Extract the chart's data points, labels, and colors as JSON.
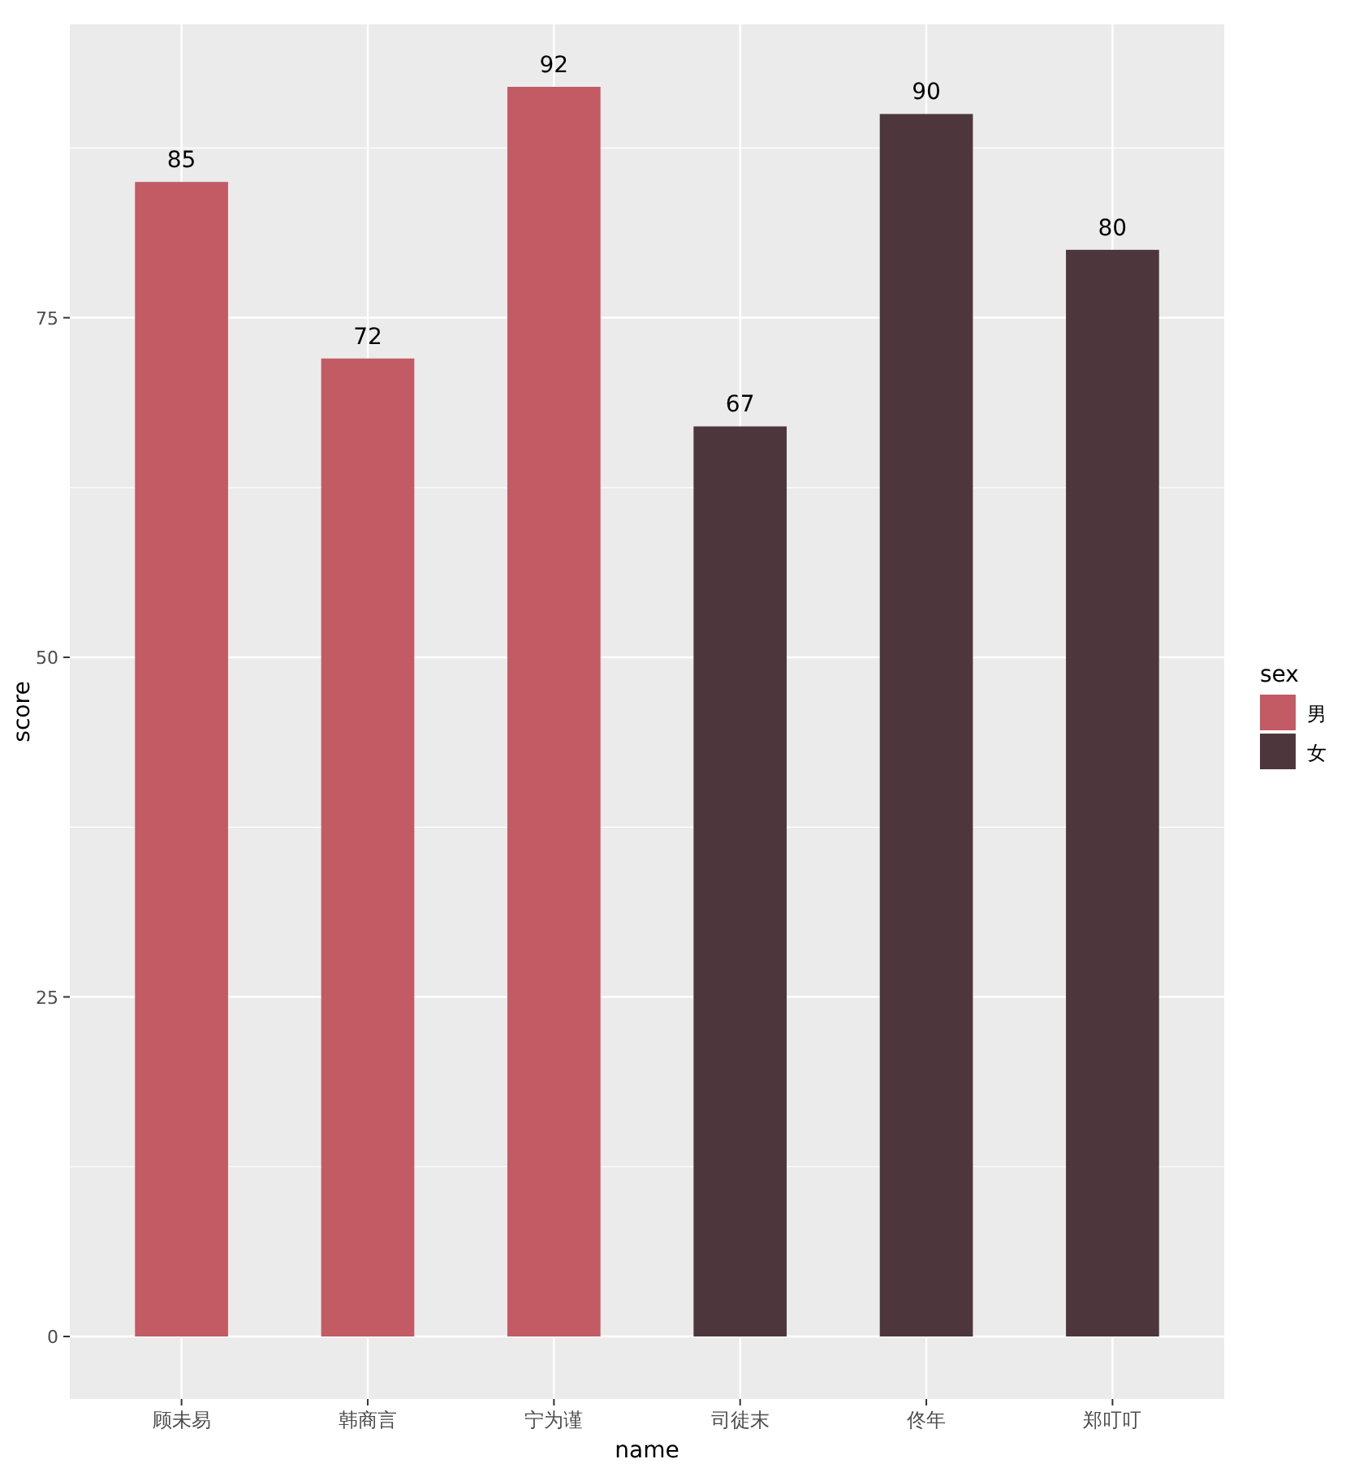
{
  "chart_data": {
    "type": "bar",
    "xlabel": "name",
    "ylabel": "score",
    "legend_title": "sex",
    "categories": [
      "顾未易",
      "韩商言",
      "宁为谨",
      "司徒末",
      "佟年",
      "郑叮叮"
    ],
    "series": [
      {
        "name": "男",
        "color": "#c25b64",
        "values": [
          85,
          72,
          92,
          null,
          null,
          null
        ]
      },
      {
        "name": "女",
        "color": "#4d373d",
        "values": [
          null,
          null,
          null,
          67,
          90,
          80
        ]
      }
    ],
    "ylim": [
      -4.6,
      96.6
    ],
    "yticks": [
      0,
      25,
      50,
      75
    ],
    "grid": true,
    "data_labels": true,
    "legend": "right"
  }
}
